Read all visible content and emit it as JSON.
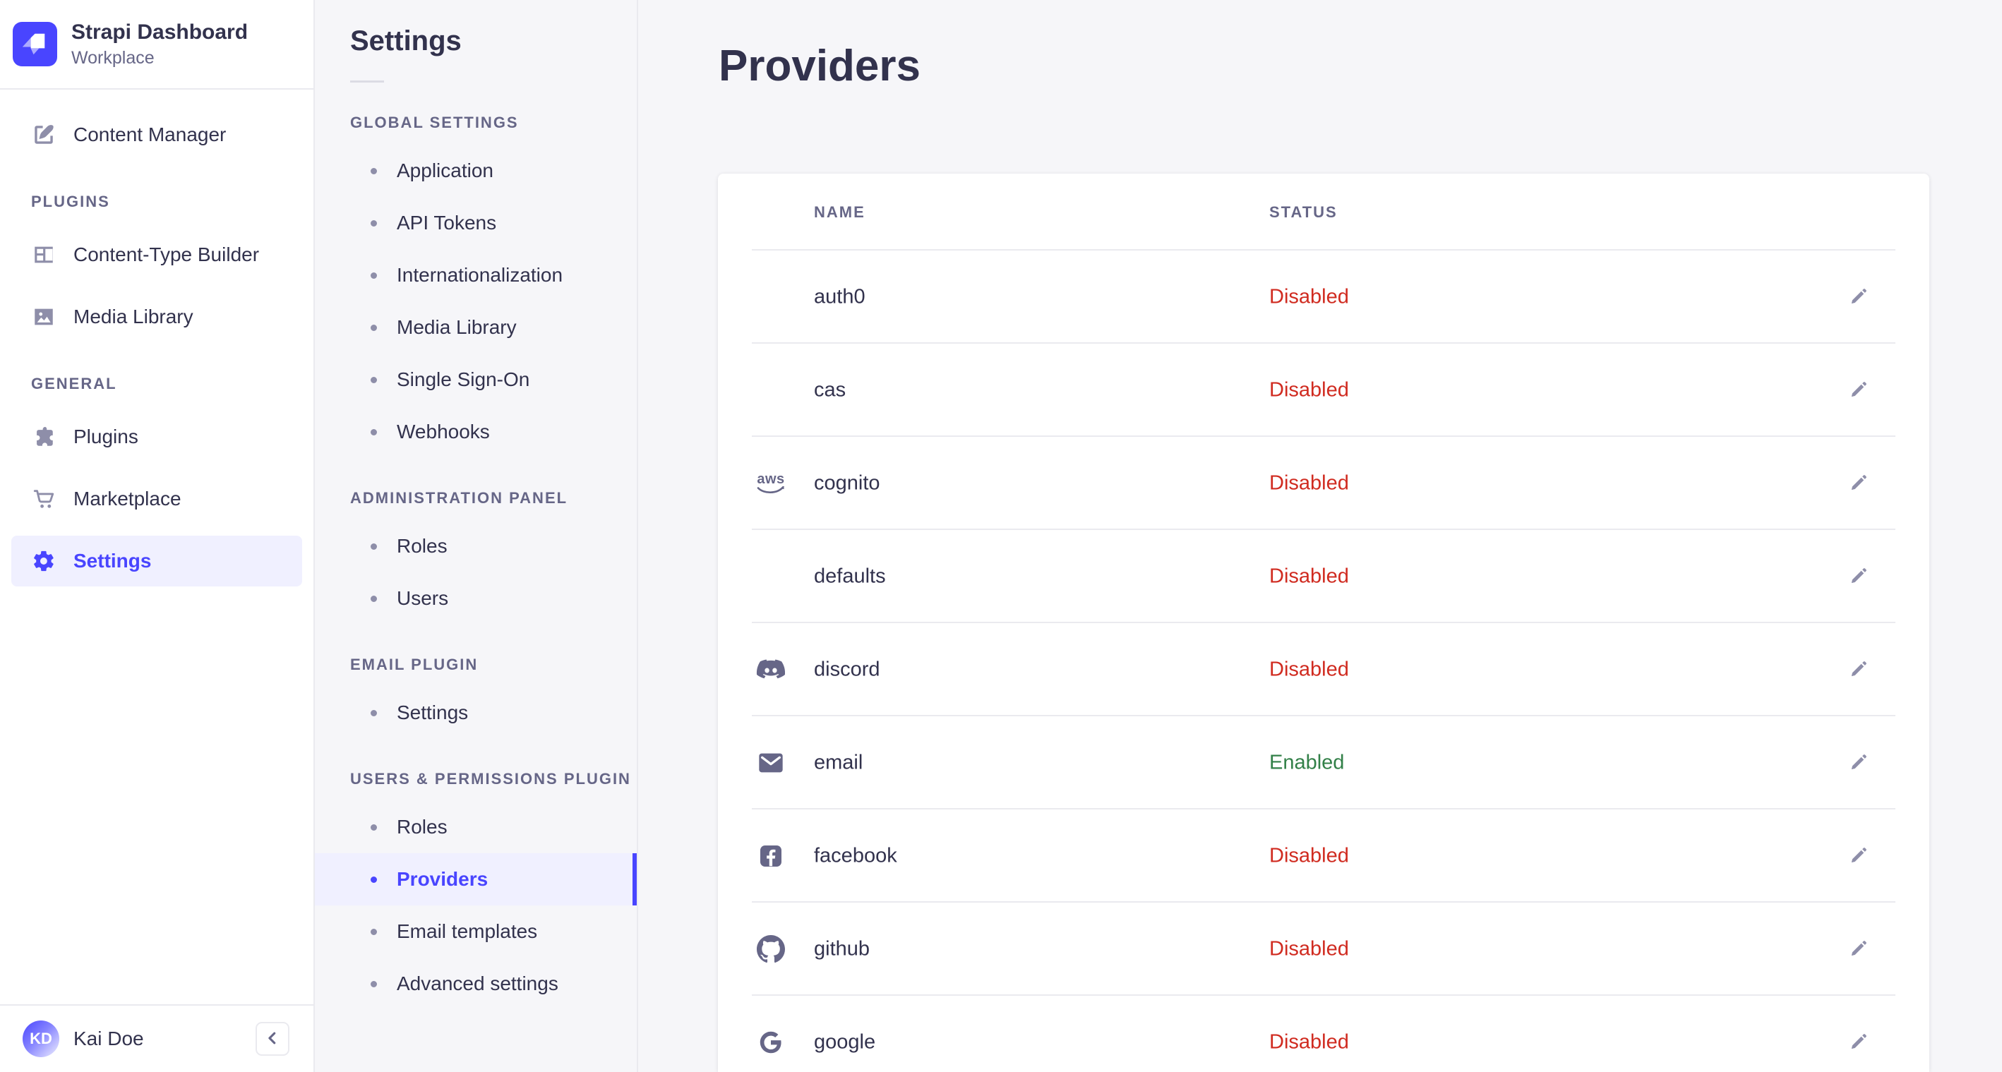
{
  "brand": {
    "name": "Strapi Dashboard",
    "workspace": "Workplace"
  },
  "colors": {
    "accent": "#4945ff",
    "accent_bg": "#f0f0ff",
    "danger": "#d02b20",
    "success": "#328048",
    "icon_gray": "#8e8ea9",
    "text_dark": "#32324d",
    "text_gray": "#666687"
  },
  "sidebar": {
    "top_items": [
      {
        "label": "Content Manager",
        "icon": "content-manager-icon"
      }
    ],
    "sections": [
      {
        "label": "PLUGINS",
        "items": [
          {
            "label": "Content-Type Builder",
            "icon": "content-type-builder-icon"
          },
          {
            "label": "Media Library",
            "icon": "media-library-icon"
          }
        ]
      },
      {
        "label": "GENERAL",
        "items": [
          {
            "label": "Plugins",
            "icon": "puzzle-icon"
          },
          {
            "label": "Marketplace",
            "icon": "cart-icon"
          },
          {
            "label": "Settings",
            "icon": "gear-icon",
            "active": true
          }
        ]
      }
    ],
    "user": {
      "name": "Kai Doe",
      "initials": "KD"
    }
  },
  "settings_nav": {
    "title": "Settings",
    "sections": [
      {
        "label": "GLOBAL SETTINGS",
        "items": [
          {
            "label": "Application"
          },
          {
            "label": "API Tokens"
          },
          {
            "label": "Internationalization"
          },
          {
            "label": "Media Library"
          },
          {
            "label": "Single Sign-On"
          },
          {
            "label": "Webhooks"
          }
        ]
      },
      {
        "label": "ADMINISTRATION PANEL",
        "items": [
          {
            "label": "Roles"
          },
          {
            "label": "Users"
          }
        ]
      },
      {
        "label": "EMAIL PLUGIN",
        "items": [
          {
            "label": "Settings"
          }
        ]
      },
      {
        "label": "USERS & PERMISSIONS PLUGIN",
        "items": [
          {
            "label": "Roles"
          },
          {
            "label": "Providers",
            "active": true
          },
          {
            "label": "Email templates"
          },
          {
            "label": "Advanced settings"
          }
        ]
      }
    ]
  },
  "main": {
    "title": "Providers",
    "table": {
      "columns": [
        "NAME",
        "STATUS"
      ],
      "rows": [
        {
          "name": "auth0",
          "status": "Disabled",
          "icon": null
        },
        {
          "name": "cas",
          "status": "Disabled",
          "icon": null
        },
        {
          "name": "cognito",
          "status": "Disabled",
          "icon": "aws-icon"
        },
        {
          "name": "defaults",
          "status": "Disabled",
          "icon": null
        },
        {
          "name": "discord",
          "status": "Disabled",
          "icon": "discord-icon"
        },
        {
          "name": "email",
          "status": "Enabled",
          "icon": "envelope-icon"
        },
        {
          "name": "facebook",
          "status": "Disabled",
          "icon": "facebook-icon"
        },
        {
          "name": "github",
          "status": "Disabled",
          "icon": "github-icon"
        },
        {
          "name": "google",
          "status": "Disabled",
          "icon": "google-icon"
        }
      ]
    }
  },
  "help": {
    "label": "?"
  }
}
